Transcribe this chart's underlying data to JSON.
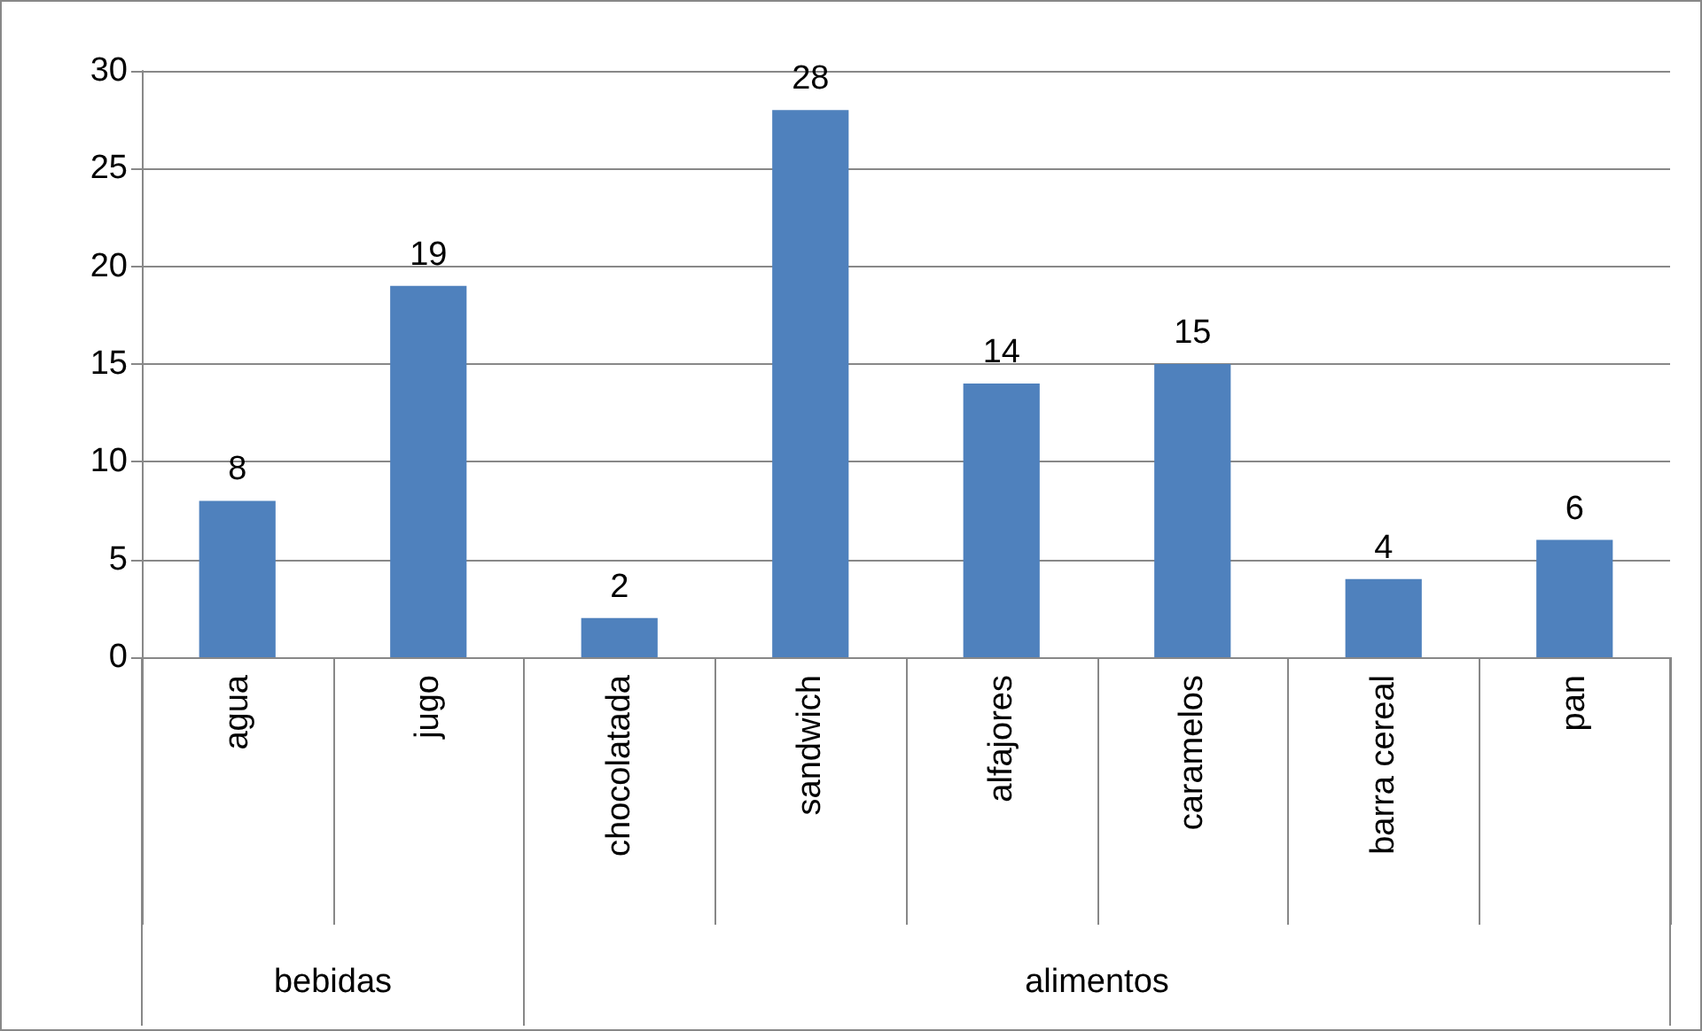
{
  "chart_data": {
    "type": "bar",
    "categories": [
      "agua",
      "jugo",
      "chocolatada",
      "sandwich",
      "alfajores",
      "caramelos",
      "barra cereal",
      "pan"
    ],
    "values": [
      8,
      19,
      2,
      28,
      14,
      15,
      4,
      6
    ],
    "color": "#4f81bd",
    "ylim": [
      0,
      30
    ],
    "yticks": [
      0,
      5,
      10,
      15,
      20,
      25,
      30
    ],
    "grid": "y",
    "data_labels": true,
    "annotations": [
      "bebidas",
      "alimentos"
    ]
  }
}
